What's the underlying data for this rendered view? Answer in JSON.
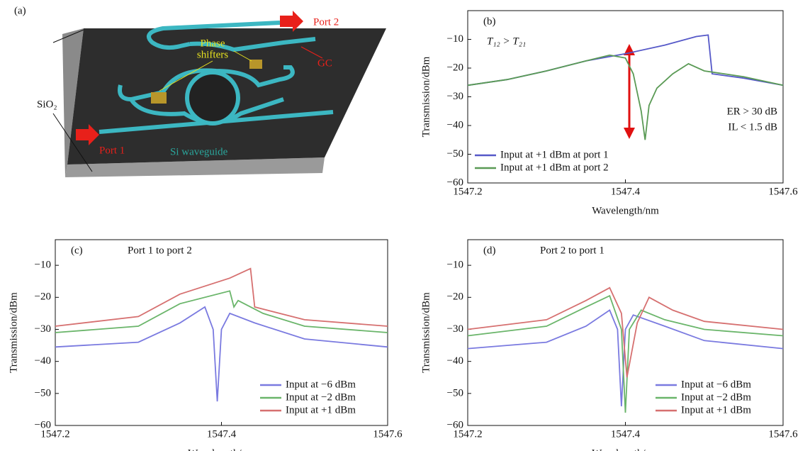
{
  "diagram": {
    "label": "(a)",
    "port2": "Port 2",
    "port1": "Port 1",
    "sio2": "SiO₂",
    "phase_shifters": [
      "Phase",
      "shifters"
    ],
    "gc": "GC",
    "si_waveguide": "Si waveguide"
  },
  "chart_data": [
    {
      "type": "line",
      "label": "(b)",
      "title": "T₁₂ > T₂₁",
      "annotations": [
        "ER > 30 dB",
        "IL < 1.5 dB"
      ],
      "xlabel": "Wavelength/nm",
      "ylabel": "Transmission/dBm",
      "legend": "lower left",
      "xlim": [
        1547.2,
        1547.6
      ],
      "xticks": [
        1547.2,
        1547.4,
        1547.6
      ],
      "ylim": [
        -60,
        0
      ],
      "yticks": [
        {
          "value": -10,
          "label": "−10"
        },
        {
          "value": -20,
          "label": "−20"
        },
        {
          "value": -30,
          "label": "−30"
        },
        {
          "value": -40,
          "label": "−40"
        },
        {
          "value": -50,
          "label": "−50"
        },
        {
          "value": -60,
          "label": "−60"
        }
      ],
      "series": [
        {
          "name": "Input at +1 dBm at port 1",
          "color": "#5558c8",
          "x": [
            1547.2,
            1547.25,
            1547.3,
            1547.35,
            1547.4,
            1547.45,
            1547.49,
            1547.505,
            1547.51,
            1547.55,
            1547.6
          ],
          "values": [
            -26,
            -24,
            -21,
            -17.5,
            -15,
            -12,
            -9,
            -8.5,
            -22,
            -23.5,
            -26
          ]
        },
        {
          "name": "Input at +1 dBm at port 2",
          "color": "#5a9a55",
          "x": [
            1547.2,
            1547.25,
            1547.3,
            1547.35,
            1547.38,
            1547.4,
            1547.41,
            1547.42,
            1547.425,
            1547.43,
            1547.44,
            1547.46,
            1547.48,
            1547.5,
            1547.55,
            1547.6
          ],
          "values": [
            -26,
            -24,
            -21,
            -17.5,
            -15.5,
            -16.5,
            -22,
            -35,
            -45,
            -33,
            -27,
            -22,
            -18.5,
            -21,
            -23,
            -26
          ]
        }
      ]
    },
    {
      "type": "line",
      "label": "(c)",
      "title": "Port 1 to port 2",
      "xlabel": "Wavelength/nm",
      "ylabel": "Transmission/dBm",
      "legend": "lower right",
      "xlim": [
        1547.2,
        1547.6
      ],
      "xticks": [
        1547.2,
        1547.4,
        1547.6
      ],
      "ylim": [
        -60,
        -2
      ],
      "yticks": [
        {
          "value": -10,
          "label": "−10"
        },
        {
          "value": -20,
          "label": "−20"
        },
        {
          "value": -30,
          "label": "−30"
        },
        {
          "value": -40,
          "label": "−40"
        },
        {
          "value": -50,
          "label": "−50"
        },
        {
          "value": -60,
          "label": "−60"
        }
      ],
      "series": [
        {
          "name": "Input at −6 dBm",
          "color": "#7a7ae0",
          "x": [
            1547.2,
            1547.3,
            1547.35,
            1547.38,
            1547.39,
            1547.395,
            1547.4,
            1547.41,
            1547.44,
            1547.5,
            1547.6
          ],
          "values": [
            -35.5,
            -34,
            -28,
            -23,
            -30,
            -52.5,
            -30,
            -25,
            -28,
            -33,
            -35.5
          ]
        },
        {
          "name": "Input at −2 dBm",
          "color": "#6ab56a",
          "x": [
            1547.2,
            1547.3,
            1547.35,
            1547.41,
            1547.415,
            1547.42,
            1547.45,
            1547.5,
            1547.6
          ],
          "values": [
            -31,
            -29,
            -22,
            -18,
            -23,
            -21,
            -25,
            -29,
            -31
          ]
        },
        {
          "name": "Input at +1 dBm",
          "color": "#d67070",
          "x": [
            1547.2,
            1547.3,
            1547.35,
            1547.41,
            1547.435,
            1547.44,
            1547.5,
            1547.6
          ],
          "values": [
            -29,
            -26,
            -19,
            -14,
            -11,
            -23,
            -27,
            -29
          ]
        }
      ]
    },
    {
      "type": "line",
      "label": "(d)",
      "title": "Port 2 to port 1",
      "xlabel": "Wavelength/nm",
      "ylabel": "Transmission/dBm",
      "legend": "lower right",
      "xlim": [
        1547.2,
        1547.6
      ],
      "xticks": [
        1547.2,
        1547.4,
        1547.6
      ],
      "ylim": [
        -60,
        -2
      ],
      "yticks": [
        {
          "value": -10,
          "label": "−10"
        },
        {
          "value": -20,
          "label": "−20"
        },
        {
          "value": -30,
          "label": "−30"
        },
        {
          "value": -40,
          "label": "−40"
        },
        {
          "value": -50,
          "label": "−50"
        },
        {
          "value": -60,
          "label": "−60"
        }
      ],
      "series": [
        {
          "name": "Input at −6 dBm",
          "color": "#7a7ae0",
          "x": [
            1547.2,
            1547.3,
            1547.35,
            1547.38,
            1547.39,
            1547.395,
            1547.4,
            1547.41,
            1547.45,
            1547.5,
            1547.6
          ],
          "values": [
            -36,
            -34,
            -29,
            -24,
            -30,
            -54,
            -30,
            -25.5,
            -29,
            -33.5,
            -36
          ]
        },
        {
          "name": "Input at −2 dBm",
          "color": "#6ab56a",
          "x": [
            1547.2,
            1547.3,
            1547.35,
            1547.38,
            1547.395,
            1547.4,
            1547.405,
            1547.42,
            1547.45,
            1547.5,
            1547.6
          ],
          "values": [
            -32,
            -29,
            -23,
            -19.5,
            -30,
            -56,
            -30,
            -24,
            -27,
            -30,
            -32
          ]
        },
        {
          "name": "Input at +1 dBm",
          "color": "#d67070",
          "x": [
            1547.2,
            1547.3,
            1547.35,
            1547.38,
            1547.395,
            1547.402,
            1547.415,
            1547.43,
            1547.46,
            1547.5,
            1547.6
          ],
          "values": [
            -30,
            -27,
            -21,
            -17,
            -25,
            -45,
            -28,
            -20,
            -24,
            -27.5,
            -30
          ]
        }
      ]
    }
  ]
}
